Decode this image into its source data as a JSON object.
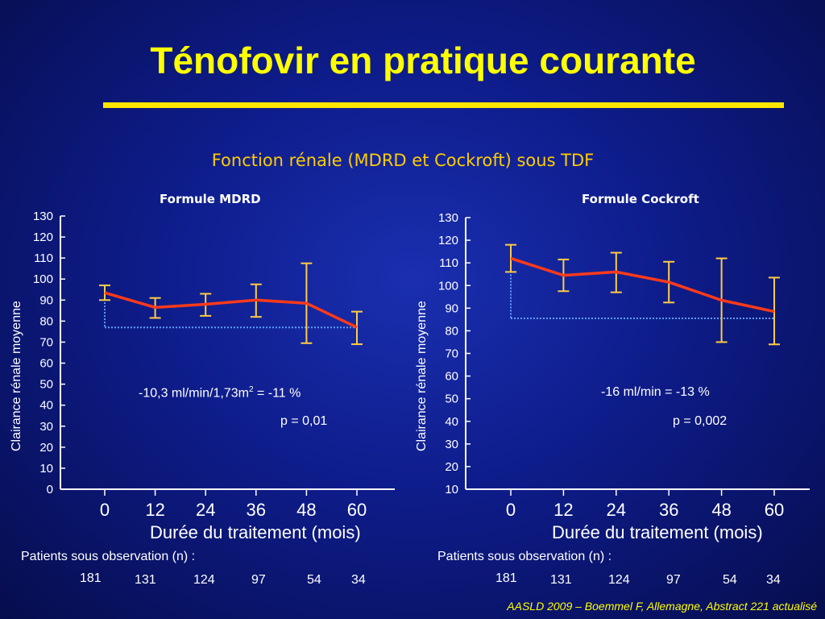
{
  "slide": {
    "title": "Ténofovir en pratique courante",
    "subtitle": "Fonction rénale (MDRD et Cockroft) sous TDF",
    "patients_label": "Patients sous observation (n) :",
    "source": "AASLD 2009 – Boemmel F, Allemagne, Abstract 221 actualisé"
  },
  "chart_data": [
    {
      "type": "line",
      "title": "Formule MDRD",
      "xlabel": "Durée du traitement (mois)",
      "ylabel": "Clairance rénale moyenne",
      "x": [
        0,
        12,
        24,
        36,
        48,
        60
      ],
      "ylim": [
        0,
        130
      ],
      "yticks": [
        0,
        10,
        20,
        30,
        40,
        50,
        60,
        70,
        80,
        90,
        100,
        110,
        120,
        130
      ],
      "series": [
        {
          "values": [
            93.5,
            86.5,
            88,
            90,
            88.5,
            77
          ],
          "error_low": [
            90,
            81.5,
            82.5,
            82,
            69.5,
            69
          ],
          "error_high": [
            97,
            91,
            93,
            97.5,
            107.5,
            84.5
          ],
          "color": "#ff3a1a"
        }
      ],
      "reference_line": {
        "value": 77,
        "color": "#5aa0ff"
      },
      "annotations": {
        "change_main": "-10,3 ml/min/1,73m",
        "change_sup": "2",
        "change_tail": " = -11 %",
        "p_value": "p = 0,01"
      },
      "patients": [
        "181",
        "131",
        "124",
        "97",
        "54",
        "34"
      ]
    },
    {
      "type": "line",
      "title": "Formule Cockroft",
      "xlabel": "Durée du traitement (mois)",
      "ylabel": "Clairance rénale moyenne",
      "x": [
        0,
        12,
        24,
        36,
        48,
        60
      ],
      "ylim": [
        10,
        130
      ],
      "yticks": [
        10,
        20,
        30,
        40,
        50,
        60,
        70,
        80,
        90,
        100,
        110,
        120,
        130
      ],
      "series": [
        {
          "values": [
            112,
            104.5,
            106,
            101.5,
            93.5,
            88.5
          ],
          "error_low": [
            106,
            97.5,
            97,
            92.5,
            75,
            74
          ],
          "error_high": [
            118,
            111.5,
            114.5,
            110.5,
            112,
            103.5
          ],
          "color": "#ff3a1a"
        }
      ],
      "reference_line": {
        "value": 85.5,
        "color": "#5aa0ff"
      },
      "annotations": {
        "change_main": "-16 ml/min  = -13 %",
        "change_sup": "",
        "change_tail": "",
        "p_value": "p = 0,002"
      },
      "patients": [
        "181",
        "131",
        "124",
        "97",
        "54",
        "34"
      ]
    }
  ]
}
